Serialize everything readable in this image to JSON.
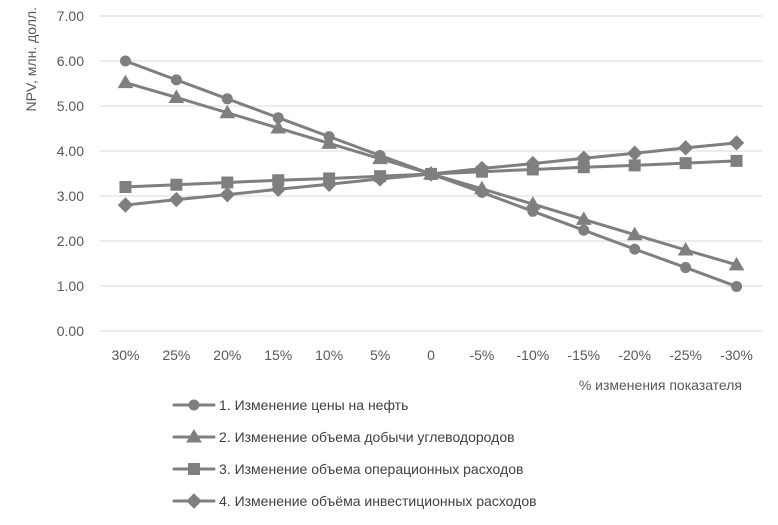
{
  "chart_data": {
    "type": "line",
    "title": "",
    "xlabel": "% изменения показателя",
    "ylabel": "NPV, млн. долл.",
    "ylim": [
      0,
      7
    ],
    "yticks": [
      "0.00",
      "1.00",
      "2.00",
      "3.00",
      "4.00",
      "5.00",
      "6.00",
      "7.00"
    ],
    "categories": [
      "30%",
      "25%",
      "20%",
      "15%",
      "10%",
      "5%",
      "0",
      "-5%",
      "-10%",
      "-15%",
      "-20%",
      "-25%",
      "-30%"
    ],
    "grid": "horizontal",
    "legend_position": "bottom",
    "series_color": "#7f7f7f",
    "series": [
      {
        "name": "1. Изменение цены на нефть",
        "marker": "circle",
        "values": [
          6.0,
          5.58,
          5.16,
          4.74,
          4.32,
          3.9,
          3.49,
          3.08,
          2.66,
          2.24,
          1.82,
          1.41,
          0.99
        ]
      },
      {
        "name": "2. Изменение объема добычи углеводородов",
        "marker": "triangle",
        "values": [
          5.52,
          5.19,
          4.85,
          4.51,
          4.17,
          3.83,
          3.49,
          3.16,
          2.82,
          2.48,
          2.14,
          1.8,
          1.47
        ]
      },
      {
        "name": "3. Изменение объема операционных расходов",
        "marker": "square",
        "values": [
          3.2,
          3.25,
          3.3,
          3.35,
          3.39,
          3.44,
          3.49,
          3.54,
          3.59,
          3.64,
          3.68,
          3.73,
          3.78
        ]
      },
      {
        "name": "4. Изменение объёма инвестиционных расходов",
        "marker": "diamond",
        "values": [
          2.8,
          2.92,
          3.03,
          3.15,
          3.26,
          3.38,
          3.49,
          3.61,
          3.72,
          3.84,
          3.95,
          4.07,
          4.18
        ]
      }
    ]
  }
}
